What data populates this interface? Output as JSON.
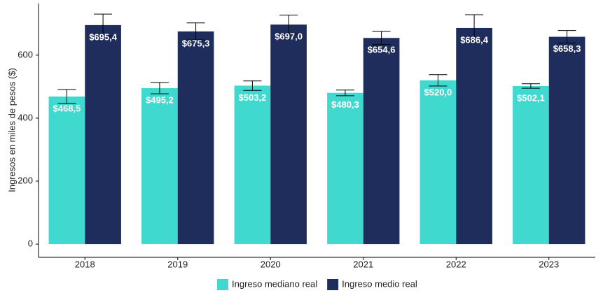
{
  "chart_data": {
    "type": "bar",
    "y_label": "Ingresos en miles de pesos ($)",
    "categories": [
      "2018",
      "2019",
      "2020",
      "2021",
      "2022",
      "2023"
    ],
    "series": [
      {
        "name": "Ingreso mediano real",
        "color": "#40d9d0",
        "values": [
          468.5,
          495.2,
          503.2,
          480.3,
          520.0,
          502.1
        ],
        "value_labels": [
          "$468,5",
          "$495,2",
          "$503,2",
          "$480,3",
          "$520,0",
          "$502,1"
        ],
        "errors": [
          22,
          18,
          15,
          9,
          18,
          7
        ]
      },
      {
        "name": "Ingreso medio real",
        "color": "#1e2d5c",
        "values": [
          695.4,
          675.3,
          697.0,
          654.6,
          686.4,
          658.3
        ],
        "value_labels": [
          "$695,4",
          "$675,3",
          "$697,0",
          "$654,6",
          "$686,4",
          "$658,3"
        ],
        "errors": [
          35,
          27,
          30,
          21,
          42,
          20
        ]
      }
    ],
    "ylim": [
      -42,
      764
    ],
    "yticks": [
      0,
      200,
      400,
      600
    ],
    "grid": false,
    "legend": "bottom"
  }
}
